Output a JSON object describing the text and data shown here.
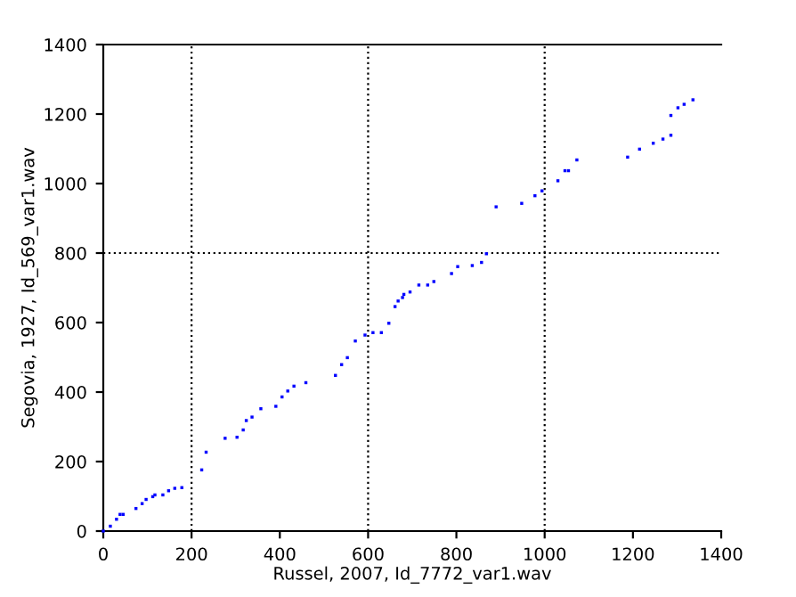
{
  "chart_data": {
    "type": "scatter",
    "xlabel": "Russel, 2007, Id_7772_var1.wav",
    "ylabel": "Segovia, 1927, Id_569_var1.wav",
    "xlim": [
      0,
      1400
    ],
    "ylim": [
      0,
      1400
    ],
    "xticks": [
      0,
      200,
      400,
      600,
      800,
      1000,
      1200,
      1400
    ],
    "yticks": [
      0,
      200,
      400,
      600,
      800,
      1000,
      1200,
      1400
    ],
    "grid": false,
    "marker": "square",
    "ref_lines": [
      {
        "axis": "x",
        "value": 200,
        "line_style": "dotted",
        "color": "#000000"
      },
      {
        "axis": "x",
        "value": 600,
        "line_style": "dotted",
        "color": "#000000"
      },
      {
        "axis": "x",
        "value": 1000,
        "line_style": "dotted",
        "color": "#000000"
      },
      {
        "axis": "y",
        "value": 800,
        "line_style": "dotted",
        "color": "#000000"
      }
    ],
    "series": [
      {
        "color": "#0000ff",
        "x": [
          0,
          16,
          30,
          38,
          45,
          74,
          88,
          97,
          112,
          117,
          135,
          148,
          162,
          178,
          223,
          233,
          276,
          303,
          317,
          324,
          337,
          357,
          391,
          405,
          418,
          432,
          459,
          526,
          540,
          553,
          571,
          593,
          611,
          630,
          647,
          661,
          668,
          678,
          681,
          695,
          715,
          735,
          749,
          789,
          803,
          836,
          857,
          868,
          890,
          948,
          978,
          994,
          1030,
          1046,
          1054,
          1073,
          1188,
          1215,
          1246,
          1268,
          1286,
          1286,
          1302,
          1316,
          1336
        ],
        "values": [
          0,
          14,
          34,
          48,
          48,
          65,
          79,
          91,
          99,
          104,
          104,
          116,
          123,
          125,
          176,
          227,
          267,
          270,
          291,
          318,
          328,
          352,
          359,
          386,
          403,
          417,
          427,
          448,
          479,
          499,
          547,
          564,
          571,
          571,
          598,
          646,
          662,
          672,
          681,
          688,
          708,
          708,
          718,
          741,
          761,
          764,
          773,
          798,
          933,
          943,
          965,
          979,
          1008,
          1037,
          1037,
          1068,
          1076,
          1099,
          1116,
          1128,
          1139,
          1196,
          1218,
          1228,
          1241
        ]
      }
    ]
  }
}
